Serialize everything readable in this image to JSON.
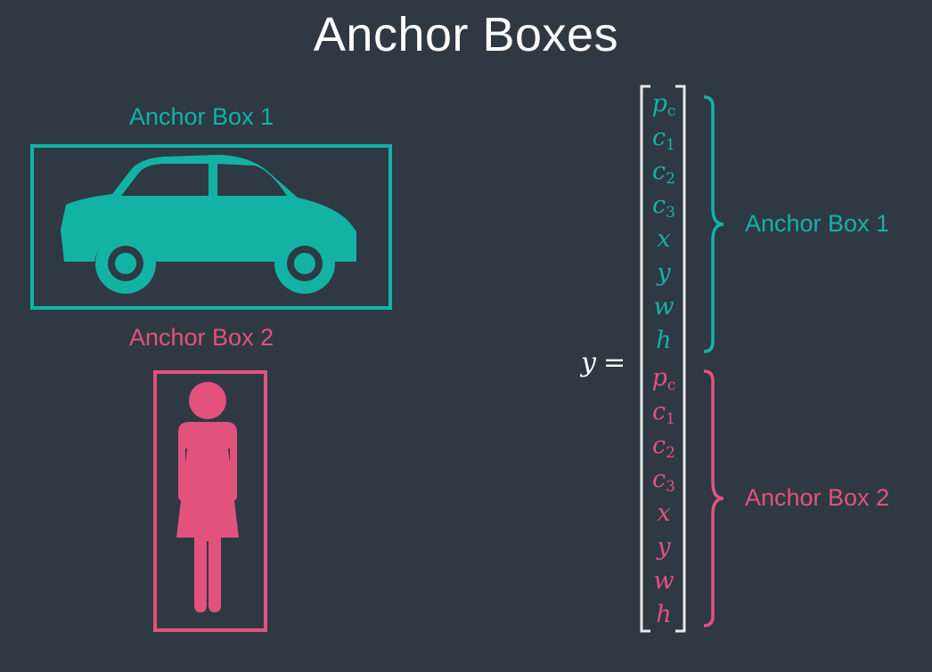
{
  "title": "Anchor Boxes",
  "left": {
    "box1_label": "Anchor Box 1",
    "box2_label": "Anchor Box 2",
    "box1_icon": "car-icon",
    "box2_icon": "person-icon"
  },
  "equation": {
    "lhs": "y",
    "equals": "=",
    "group1_label": "Anchor Box 1",
    "group2_label": "Anchor Box 2",
    "group1": [
      {
        "sym": "p",
        "sub": "c"
      },
      {
        "sym": "c",
        "sub": "1"
      },
      {
        "sym": "c",
        "sub": "2"
      },
      {
        "sym": "c",
        "sub": "3"
      },
      {
        "sym": "x",
        "sub": ""
      },
      {
        "sym": "y",
        "sub": ""
      },
      {
        "sym": "w",
        "sub": ""
      },
      {
        "sym": "h",
        "sub": ""
      }
    ],
    "group2": [
      {
        "sym": "p",
        "sub": "c"
      },
      {
        "sym": "c",
        "sub": "1"
      },
      {
        "sym": "c",
        "sub": "2"
      },
      {
        "sym": "c",
        "sub": "3"
      },
      {
        "sym": "x",
        "sub": ""
      },
      {
        "sym": "y",
        "sub": ""
      },
      {
        "sym": "w",
        "sub": ""
      },
      {
        "sym": "h",
        "sub": ""
      }
    ]
  },
  "colors": {
    "background": "#2e3944",
    "anchor1": "#12b3a5",
    "anchor2": "#e2527d",
    "text": "#ffffff"
  }
}
